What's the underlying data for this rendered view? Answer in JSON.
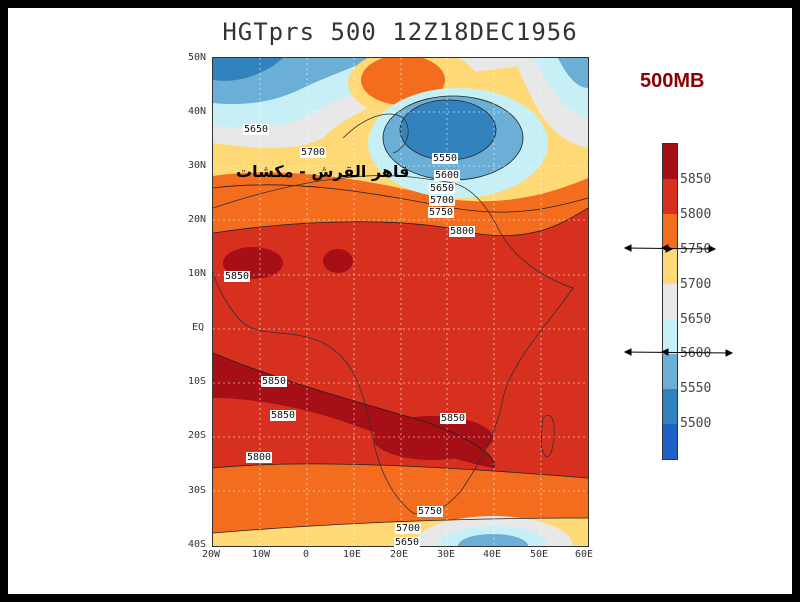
{
  "title": "HGTprs 500 12Z18DEC1956",
  "level_label": "500MB",
  "annotation_text": "قاهر القرش - مكشات",
  "lat_labels": [
    "50N",
    "40N",
    "30N",
    "20N",
    "10N",
    "EQ",
    "10S",
    "20S",
    "30S",
    "40S"
  ],
  "lon_labels": [
    "20W",
    "10W",
    "0",
    "10E",
    "20E",
    "30E",
    "40E",
    "50E",
    "60E"
  ],
  "contour_labels": [
    "5650",
    "5700",
    "5550",
    "5600",
    "5650",
    "5700",
    "5750",
    "5800",
    "5850",
    "5850",
    "5850",
    "5850",
    "5800",
    "5750",
    "5700",
    "5650"
  ],
  "colorbar": {
    "ticks": [
      "5850",
      "5800",
      "5750",
      "5700",
      "5650",
      "5600",
      "5550",
      "5500"
    ],
    "colors": [
      "#a50f15",
      "#d7301f",
      "#f46d1f",
      "#fed976",
      "#e8e8e8",
      "#c6f0f5",
      "#6baed6",
      "#3182bd",
      "#1e5fc8"
    ]
  }
}
